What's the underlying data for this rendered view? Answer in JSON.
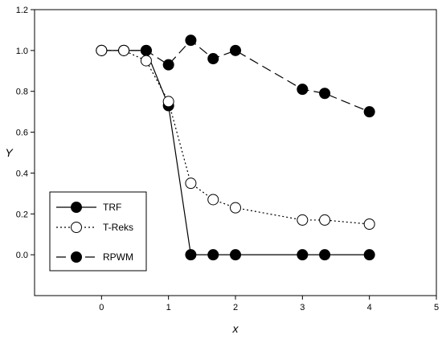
{
  "chart_data": {
    "type": "line",
    "title": "",
    "xlabel": "x",
    "ylabel": "Y",
    "xlim": [
      -1,
      5
    ],
    "ylim": [
      -0.2,
      1.2
    ],
    "xticks": [
      0,
      1,
      2,
      3,
      4,
      5
    ],
    "xtick_labels": [
      "0",
      "1",
      "2",
      "3",
      "4",
      "5"
    ],
    "yticks": [
      0.0,
      0.2,
      0.4,
      0.6,
      0.8,
      1.0,
      1.2
    ],
    "ytick_labels": [
      "0.0",
      "0.2",
      "0.4",
      "0.6",
      "0.8",
      "1.0",
      "1.2"
    ],
    "grid": false,
    "legend_position": "bottom-left",
    "series": [
      {
        "name": "TRF",
        "line": "solid",
        "marker": "filled-circle",
        "x": [
          0,
          0.333,
          0.667,
          1,
          1.333,
          1.667,
          2,
          3,
          3.333,
          4
        ],
        "y": [
          1.0,
          1.0,
          1.0,
          0.73,
          0.0,
          0.0,
          0.0,
          0.0,
          0.0,
          0.0
        ]
      },
      {
        "name": "T-Reks",
        "line": "dotted",
        "marker": "open-circle",
        "x": [
          0,
          0.333,
          0.667,
          1,
          1.333,
          1.667,
          2,
          3,
          3.333,
          4
        ],
        "y": [
          1.0,
          1.0,
          0.95,
          0.75,
          0.35,
          0.27,
          0.23,
          0.17,
          0.17,
          0.15
        ]
      },
      {
        "name": "RPWM",
        "line": "dashed",
        "marker": "filled-circle",
        "x": [
          0,
          0.333,
          0.667,
          1,
          1.333,
          1.667,
          2,
          3,
          3.333,
          4
        ],
        "y": [
          1.0,
          1.0,
          1.0,
          0.93,
          1.05,
          0.96,
          1.0,
          0.81,
          0.79,
          0.7
        ]
      }
    ]
  }
}
